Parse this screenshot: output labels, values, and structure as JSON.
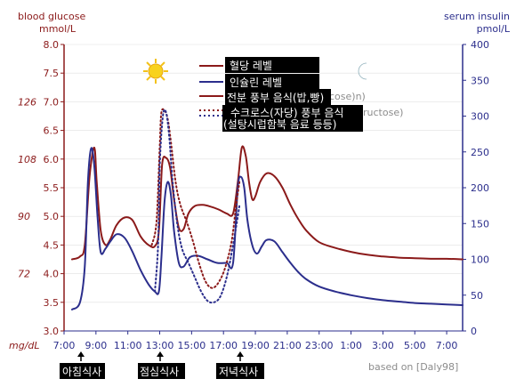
{
  "chart_data": {
    "type": "line",
    "left_axis": {
      "label_line1": "blood glucose",
      "label_line2": "mmol/L",
      "range": [
        3.0,
        8.0
      ],
      "ticks": [
        "3.0",
        "3.5",
        "4.0",
        "4.5",
        "5.0",
        "5.5",
        "6.0",
        "6.5",
        "7.0",
        "7.5",
        "8.0"
      ],
      "mgdl_label": "mg/dL",
      "mgdl_ticks": [
        {
          "value": 4.0,
          "label": "72"
        },
        {
          "value": 5.0,
          "label": "90"
        },
        {
          "value": 6.0,
          "label": "108"
        },
        {
          "value": 7.0,
          "label": "126"
        }
      ]
    },
    "right_axis": {
      "label_line1": "serum insulin",
      "label_line2": "pmol/L",
      "range": [
        0,
        400
      ],
      "ticks": [
        "0",
        "50",
        "100",
        "150",
        "200",
        "250",
        "300",
        "350",
        "400"
      ]
    },
    "x_axis": {
      "range": [
        7,
        32
      ],
      "ticks": [
        "7:00",
        "9:00",
        "11:00",
        "13:00",
        "15:00",
        "17:00",
        "19:00",
        "21:00",
        "23:00",
        "1:00",
        "3:00",
        "5:00",
        "7:00"
      ]
    },
    "legend": [
      {
        "label": "혈당 레벨",
        "color": "#8b1a1a",
        "style": "solid"
      },
      {
        "label": "인슐린 레벨",
        "color": "#2b2e8c",
        "style": "solid"
      },
      {
        "label": "전분 풍부 음식(밥,빵)",
        "overlap_text": "cose)n)",
        "color": "#8b1a1a",
        "style": "solid"
      },
      {
        "label_line1": "수크로스(자당) 풍부 음식",
        "label_line2": "(설탕시럽함북 음료 등등)",
        "overlap_text": "ructose)",
        "colors": [
          "#8b1a1a",
          "#2b2e8c"
        ],
        "style": "dotted"
      }
    ],
    "meals": [
      "아침식사",
      "점심식사",
      "저녁식사"
    ],
    "meal_times": [
      8.0,
      13.0,
      18.0
    ],
    "source": "based on [Daly98]",
    "series": [
      {
        "name": "혈당 레벨",
        "axis": "left",
        "color": "#8b1a1a",
        "style": "solid",
        "x": [
          7.5,
          8.0,
          8.3,
          8.6,
          8.9,
          9.05,
          9.3,
          9.6,
          9.9,
          10.3,
          10.8,
          11.3,
          11.8,
          12.3,
          12.7,
          12.95,
          13.15,
          13.4,
          13.65,
          13.9,
          14.2,
          14.5,
          14.8,
          15.2,
          15.7,
          16.2,
          16.7,
          17.2,
          17.6,
          17.9,
          18.15,
          18.4,
          18.6,
          18.8,
          19.0,
          19.3,
          19.7,
          20.2,
          20.7,
          21.2,
          21.7,
          22.2,
          23.0,
          24.0,
          25.0,
          26.0,
          27.0,
          28.0,
          29.0,
          30.0,
          31.0,
          32.0
        ],
        "y": [
          4.25,
          4.3,
          4.5,
          5.7,
          6.2,
          5.6,
          4.75,
          4.5,
          4.6,
          4.85,
          4.98,
          4.93,
          4.65,
          4.5,
          4.48,
          4.75,
          5.9,
          6.02,
          5.85,
          5.3,
          4.8,
          4.78,
          5.05,
          5.18,
          5.2,
          5.17,
          5.12,
          5.05,
          5.05,
          5.6,
          6.2,
          6.05,
          5.6,
          5.3,
          5.35,
          5.6,
          5.75,
          5.7,
          5.5,
          5.2,
          4.95,
          4.75,
          4.55,
          4.45,
          4.38,
          4.33,
          4.3,
          4.28,
          4.27,
          4.26,
          4.26,
          4.25
        ]
      },
      {
        "name": "인슐린 레벨",
        "axis": "right",
        "color": "#2b2e8c",
        "style": "solid",
        "x": [
          7.5,
          8.0,
          8.3,
          8.5,
          8.7,
          8.9,
          9.1,
          9.3,
          9.6,
          9.9,
          10.3,
          10.8,
          11.3,
          11.8,
          12.3,
          12.7,
          12.95,
          13.1,
          13.3,
          13.5,
          13.7,
          13.9,
          14.2,
          14.5,
          14.9,
          15.4,
          16.0,
          16.6,
          17.2,
          17.6,
          17.9,
          18.1,
          18.3,
          18.5,
          18.8,
          19.1,
          19.4,
          19.7,
          20.2,
          20.7,
          21.2,
          21.7,
          22.2,
          23.0,
          24.0,
          25.0,
          26.0,
          27.0,
          28.0,
          29.0,
          30.0,
          31.0,
          32.0
        ],
        "y": [
          30,
          40,
          90,
          210,
          255,
          230,
          160,
          110,
          115,
          125,
          135,
          130,
          110,
          85,
          65,
          55,
          55,
          100,
          180,
          208,
          190,
          140,
          95,
          90,
          103,
          105,
          100,
          95,
          95,
          95,
          200,
          215,
          200,
          155,
          120,
          108,
          118,
          127,
          125,
          110,
          95,
          82,
          72,
          62,
          55,
          50,
          46,
          43,
          41,
          39,
          38,
          37,
          36
        ]
      },
      {
        "name": "수크로스(자당) 풍부 음식 - 혈당",
        "axis": "left",
        "color": "#8b1a1a",
        "style": "dotted",
        "x": [
          12.5,
          12.8,
          13.0,
          13.1,
          13.3,
          13.5,
          13.7,
          14.0,
          14.3,
          14.7,
          15.1,
          15.5,
          15.9,
          16.3,
          16.7,
          17.1,
          17.5,
          17.8,
          18.0
        ],
        "y": [
          4.5,
          4.9,
          6.2,
          6.8,
          6.85,
          6.7,
          6.3,
          5.6,
          5.2,
          4.9,
          4.55,
          4.15,
          3.85,
          3.75,
          3.85,
          4.1,
          4.55,
          5.2,
          5.6
        ]
      },
      {
        "name": "수크로스(자당) 풍부 음식 - 인슐린",
        "axis": "right",
        "color": "#2b2e8c",
        "style": "dotted",
        "x": [
          12.7,
          12.9,
          13.0,
          13.2,
          13.4,
          13.6,
          13.8,
          14.1,
          14.4,
          14.8,
          15.2,
          15.6,
          16.0,
          16.4,
          16.8,
          17.2,
          17.6,
          17.9,
          18.0
        ],
        "y": [
          55,
          120,
          230,
          300,
          305,
          270,
          210,
          150,
          115,
          95,
          75,
          55,
          42,
          40,
          48,
          75,
          120,
          160,
          175
        ]
      }
    ]
  }
}
